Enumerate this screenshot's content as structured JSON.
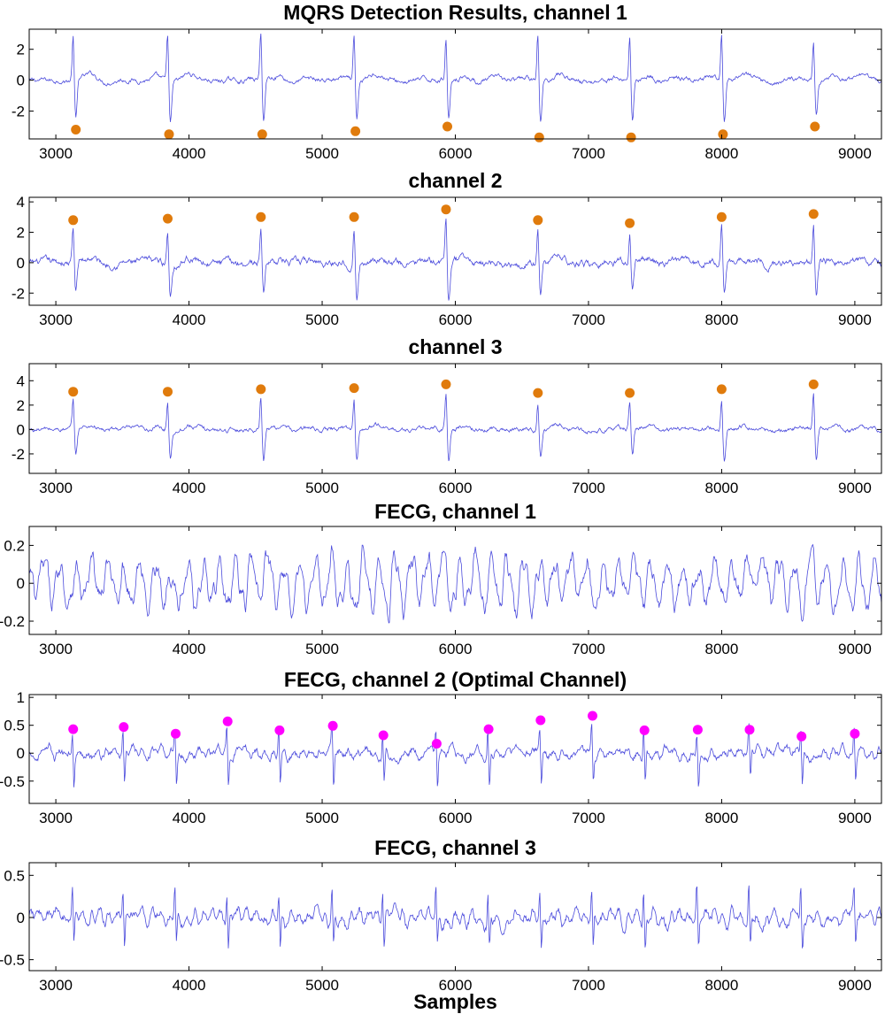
{
  "figure": {
    "xlabel": "Samples"
  },
  "colors": {
    "signal": "#2b2bd6",
    "mqrs_marker": "#e07b0c",
    "fqrs_marker": "#ff00ff",
    "axis": "#000000"
  },
  "chart_data": [
    {
      "type": "line",
      "title": "MQRS Detection Results, channel 1",
      "xlim": [
        2800,
        9200
      ],
      "ylim": [
        -3.8,
        3.3
      ],
      "xticks": [
        3000,
        4000,
        5000,
        6000,
        7000,
        8000,
        9000
      ],
      "yticks": [
        2,
        0,
        -2
      ],
      "ytick_labels": [
        "2",
        "0",
        "-2"
      ],
      "signal": {
        "kind": "mecg",
        "polarity": 1,
        "baseline": 0.0,
        "noise": 0.1,
        "wave_amp": 0.6
      },
      "peaks_x": [
        3130,
        3840,
        4540,
        5240,
        5930,
        6620,
        7310,
        8000,
        8690
      ],
      "peak_amp": [
        3.1,
        3.3,
        3.3,
        3.1,
        2.9,
        3.3,
        3.1,
        3.3,
        2.6
      ],
      "markers": {
        "x": [
          3150,
          3850,
          4550,
          5250,
          5940,
          6630,
          7320,
          8010,
          8700
        ],
        "y": [
          -3.2,
          -3.5,
          -3.5,
          -3.3,
          -3.0,
          -3.7,
          -3.7,
          -3.5,
          -3.0
        ]
      }
    },
    {
      "type": "line",
      "title": "channel 2",
      "xlim": [
        2800,
        9200
      ],
      "ylim": [
        -2.8,
        4.3
      ],
      "xticks": [
        3000,
        4000,
        5000,
        6000,
        7000,
        8000,
        9000
      ],
      "yticks": [
        4,
        2,
        0,
        -2
      ],
      "ytick_labels": [
        "4",
        "2",
        "0",
        "-2"
      ],
      "signal": {
        "kind": "mecg",
        "polarity": 1,
        "baseline": 0.0,
        "noise": 0.15,
        "wave_amp": 0.5
      },
      "peaks_x": [
        3130,
        3840,
        4540,
        5240,
        5930,
        6620,
        7310,
        8000,
        8690
      ],
      "peak_amp": [
        2.4,
        2.4,
        2.6,
        2.7,
        3.0,
        2.4,
        2.2,
        2.6,
        2.8
      ],
      "markers": {
        "x": [
          3130,
          3840,
          4540,
          5240,
          5930,
          6620,
          7310,
          8000,
          8690
        ],
        "y": [
          2.8,
          2.9,
          3.0,
          3.0,
          3.5,
          2.8,
          2.6,
          3.0,
          3.2
        ]
      }
    },
    {
      "type": "line",
      "title": "channel 3",
      "xlim": [
        2800,
        9200
      ],
      "ylim": [
        -3.6,
        5.4
      ],
      "xticks": [
        3000,
        4000,
        5000,
        6000,
        7000,
        8000,
        9000
      ],
      "yticks": [
        4,
        2,
        0,
        -2
      ],
      "ytick_labels": [
        "4",
        "2",
        "0",
        "-2"
      ],
      "signal": {
        "kind": "mecg",
        "polarity": 1,
        "baseline": 0.0,
        "noise": 0.12,
        "wave_amp": 0.5
      },
      "peaks_x": [
        3130,
        3840,
        4540,
        5240,
        5930,
        6620,
        7310,
        8000,
        8690
      ],
      "peak_amp": [
        2.6,
        2.6,
        2.9,
        2.9,
        3.2,
        2.5,
        2.5,
        2.9,
        3.2
      ],
      "markers": {
        "x": [
          3130,
          3840,
          4540,
          5240,
          5930,
          6620,
          7310,
          8000,
          8690
        ],
        "y": [
          3.1,
          3.1,
          3.3,
          3.4,
          3.7,
          3.0,
          3.0,
          3.3,
          3.7
        ]
      }
    },
    {
      "type": "line",
      "title": "FECG, channel 1",
      "xlim": [
        2800,
        9200
      ],
      "ylim": [
        -0.27,
        0.3
      ],
      "xticks": [
        3000,
        4000,
        5000,
        6000,
        7000,
        8000,
        9000
      ],
      "yticks": [
        0.2,
        0,
        -0.2
      ],
      "ytick_labels": [
        "0.2",
        "0",
        "-0.2"
      ],
      "signal": {
        "kind": "osc",
        "amp": 0.19,
        "period": 120,
        "noise": 0.03
      },
      "markers": null
    },
    {
      "type": "line",
      "title": "FECG, channel 2 (Optimal Channel)",
      "xlim": [
        2800,
        9200
      ],
      "ylim": [
        -0.9,
        1.05
      ],
      "xticks": [
        3000,
        4000,
        5000,
        6000,
        7000,
        8000,
        9000
      ],
      "yticks": [
        1,
        0.5,
        0,
        -0.5
      ],
      "ytick_labels": [
        "1",
        "0.5",
        "0",
        "-0.5"
      ],
      "signal": {
        "kind": "fecg",
        "amp": 0.08,
        "period": 70,
        "noise": 0.05,
        "spike": 0.5
      },
      "peaks_x": [
        3130,
        3510,
        3900,
        4290,
        4680,
        5080,
        5460,
        5860,
        6250,
        6640,
        7030,
        7420,
        7820,
        8210,
        8600,
        9000
      ],
      "markers": {
        "x": [
          3130,
          3510,
          3900,
          4290,
          4680,
          5080,
          5460,
          5860,
          6250,
          6640,
          7030,
          7420,
          7820,
          8210,
          8600,
          9000
        ],
        "y": [
          0.43,
          0.47,
          0.35,
          0.57,
          0.41,
          0.49,
          0.32,
          0.17,
          0.43,
          0.59,
          0.67,
          0.41,
          0.42,
          0.42,
          0.3,
          0.35
        ]
      }
    },
    {
      "type": "line",
      "title": "FECG, channel 3",
      "xlim": [
        2800,
        9200
      ],
      "ylim": [
        -0.63,
        0.65
      ],
      "xticks": [
        3000,
        4000,
        5000,
        6000,
        7000,
        8000,
        9000
      ],
      "yticks": [
        0.5,
        0,
        -0.5
      ],
      "ytick_labels": [
        "0.5",
        "0",
        "-0.5"
      ],
      "signal": {
        "kind": "fecg",
        "amp": 0.09,
        "period": 65,
        "noise": 0.04,
        "spike": 0.35
      },
      "peaks_x": [
        3130,
        3510,
        3900,
        4290,
        4680,
        5080,
        5460,
        5860,
        6250,
        6640,
        7030,
        7420,
        7820,
        8210,
        8600,
        9000
      ],
      "markers": null
    }
  ]
}
